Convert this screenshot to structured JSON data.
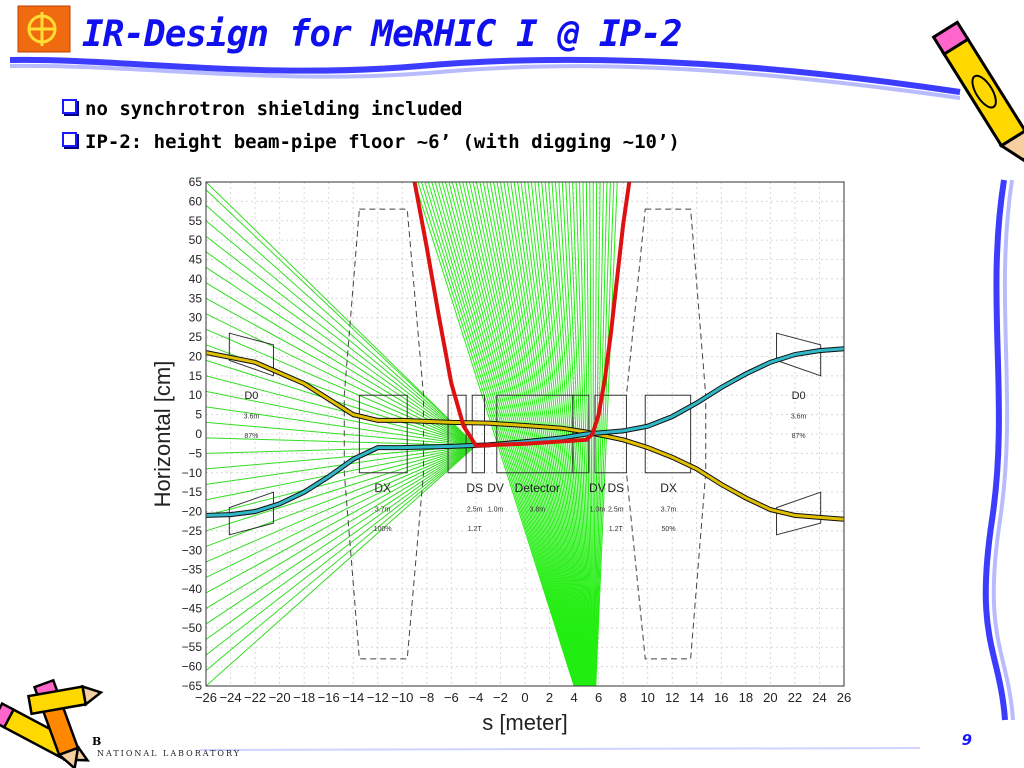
{
  "slide": {
    "title": "IR-Design for MeRHIC I @ IP-2",
    "bullets": [
      "no synchrotron shielding included",
      "IP-2: height beam-pipe floor ~6’ (with digging ~10’)"
    ],
    "page_number": "9",
    "footer_lab_initial": "B",
    "footer_lab_text": "NATIONAL LABORATORY"
  },
  "chart_data": {
    "type": "line",
    "xlabel": "s [meter]",
    "ylabel": "Horizontal [cm]",
    "xlim": [
      -26,
      26
    ],
    "ylim": [
      -65,
      65
    ],
    "xticks": [
      -26,
      -24,
      -22,
      -20,
      -18,
      -16,
      -14,
      -12,
      -10,
      -8,
      -6,
      -4,
      -2,
      0,
      2,
      4,
      6,
      8,
      10,
      12,
      14,
      16,
      18,
      20,
      22,
      24,
      26
    ],
    "yticks": [
      65,
      60,
      55,
      50,
      45,
      40,
      35,
      30,
      25,
      20,
      15,
      10,
      5,
      0,
      -5,
      -10,
      -15,
      -20,
      -25,
      -30,
      -35,
      -40,
      -45,
      -50,
      -55,
      -60,
      -65
    ],
    "grid": true,
    "series": [
      {
        "name": "",
        "color": "#e0c000",
        "x": [
          -26,
          -22,
          -18,
          -16,
          -14,
          -12,
          -10,
          -6,
          -3,
          0,
          3,
          5,
          8,
          10,
          12,
          14,
          16,
          18,
          20,
          22,
          24,
          26
        ],
        "y": [
          21,
          18.5,
          13,
          9,
          5,
          3.5,
          3.5,
          3,
          2.8,
          2.2,
          1.5,
          0.5,
          -1.5,
          -3.5,
          -6,
          -9,
          -13,
          -16.5,
          -19.5,
          -21,
          -21.5,
          -22
        ]
      },
      {
        "name": "",
        "color": "#30b8c8",
        "x": [
          -26,
          -24,
          -22,
          -20,
          -18,
          -16,
          -14,
          -12,
          -10,
          -6,
          -3,
          0,
          3,
          5,
          8,
          10,
          12,
          14,
          16,
          18,
          20,
          22,
          24,
          26
        ],
        "y": [
          -21,
          -20.8,
          -20,
          -18,
          -15,
          -11,
          -6.5,
          -3.5,
          -3.5,
          -3.2,
          -2.8,
          -2,
          -1,
          0,
          0.8,
          2,
          4.5,
          8,
          12,
          15.5,
          18.5,
          20.5,
          21.5,
          22
        ]
      },
      {
        "name": "",
        "color": "#dd1111",
        "x": [
          -9,
          -8,
          -7,
          -6,
          -5,
          -4,
          0,
          5,
          5.5,
          6,
          6.5,
          7,
          7.5,
          8,
          8.5
        ],
        "y": [
          65,
          48,
          30,
          13,
          2,
          -3,
          -2.5,
          -1.5,
          0,
          5,
          14,
          26,
          40,
          54,
          65
        ]
      }
    ],
    "annotations": {
      "dipoles": [
        {
          "label": "D0",
          "length": "3.6m",
          "field": "87%",
          "dims": [
            "24.1",
            "20.5"
          ]
        },
        {
          "label": "D0",
          "length": "3.6m",
          "field": "87%",
          "dims": [
            "20.5",
            "24.1"
          ]
        }
      ],
      "magnets": [
        {
          "label": "DX",
          "length": "3.7m",
          "field": "100%"
        },
        {
          "label": "DS",
          "length": "2.5m",
          "field": "1.2T"
        },
        {
          "label": "DV",
          "length": "1.0m",
          "field": ""
        },
        {
          "label": "Detector",
          "length": "3.8m",
          "field": ""
        },
        {
          "label": "DV",
          "length": "1.0m",
          "field": ""
        },
        {
          "label": "DS",
          "length": "2.5m",
          "field": "1.2T"
        },
        {
          "label": "DX",
          "length": "3.7m",
          "field": "50%"
        }
      ],
      "dims_top": [
        "-14.73",
        "-13.5",
        "-9.6",
        "-8.27",
        "-6.27",
        "-3.3",
        "-2.3",
        "-3.7",
        "-1.9",
        "3.9",
        "5.2",
        "5.7",
        "6.27",
        "6.8",
        "8.27",
        "9.8",
        "13.5",
        "14.73",
        "-13.5",
        "-9.6",
        "9.8",
        "13.5"
      ]
    }
  }
}
